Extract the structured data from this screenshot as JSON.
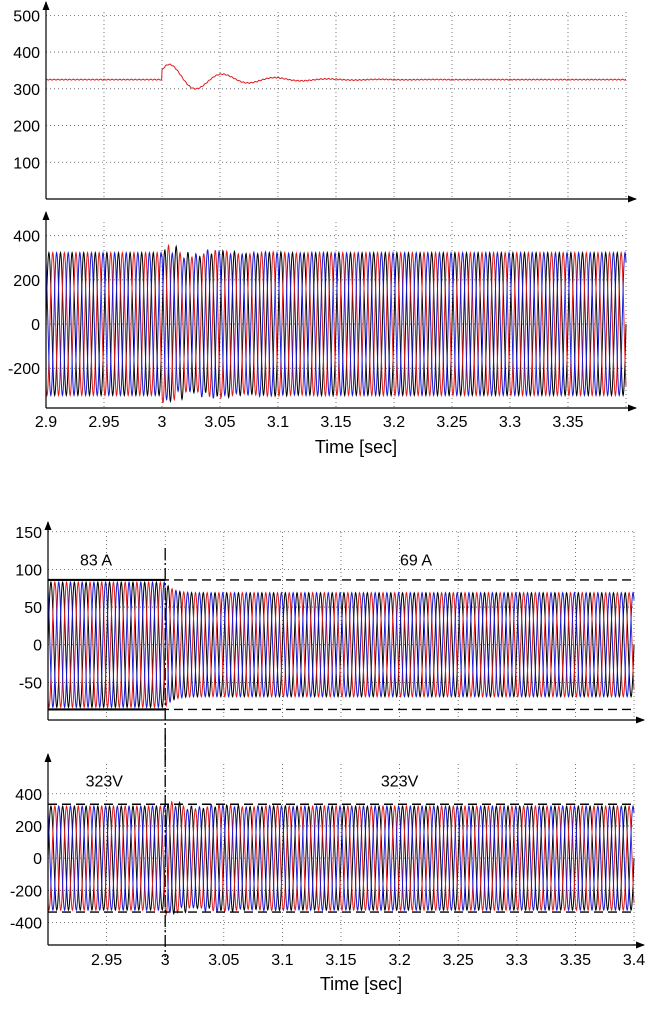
{
  "colors": {
    "phase_a": "#000000",
    "phase_b": "#e0191b",
    "phase_c": "#1919d6",
    "dc": "#e0191b"
  },
  "chart_data": [
    {
      "id": "p1",
      "type": "line",
      "xlim": [
        2.9,
        3.4
      ],
      "ylim": [
        0,
        520
      ],
      "yticks": [
        "100",
        "200",
        "300",
        "400",
        "500"
      ],
      "ytick_values": [
        100,
        200,
        300,
        400,
        500
      ],
      "xticks": [],
      "xtick_values": [],
      "xlabel": "",
      "ylabel": "",
      "grid": true,
      "series": [
        {
          "key": "dc",
          "kind": "dc",
          "base": 325,
          "events": [
            {
              "t": 3.0,
              "overshoot": 48,
              "tau": 0.045,
              "freq": 22
            }
          ]
        }
      ]
    },
    {
      "id": "p2",
      "type": "line",
      "xlim": [
        2.9,
        3.4
      ],
      "ylim": [
        -380,
        480
      ],
      "yticks": [
        "400",
        "200",
        "0",
        "-200"
      ],
      "ytick_values": [
        400,
        200,
        0,
        -200
      ],
      "xticks": [
        "2.9",
        "2.95",
        "3",
        "3.05",
        "3.1",
        "3.15",
        "3.2",
        "3.25",
        "3.3",
        "3.35"
      ],
      "xtick_values": [
        2.9,
        2.95,
        3.0,
        3.05,
        3.1,
        3.15,
        3.2,
        3.25,
        3.3,
        3.35
      ],
      "xlabel": "Time [sec]",
      "ylabel": "",
      "grid": true,
      "series": [
        {
          "key": "phase_a",
          "kind": "ac",
          "amplitude": 323,
          "freq": 100,
          "phase_deg": 0
        },
        {
          "key": "phase_b",
          "kind": "ac",
          "amplitude": 323,
          "freq": 100,
          "phase_deg": -120
        },
        {
          "key": "phase_c",
          "kind": "ac",
          "amplitude": 323,
          "freq": 100,
          "phase_deg": 120
        }
      ],
      "disturbance": {
        "t": 3.0,
        "gain": 0.12,
        "tau": 0.04
      }
    },
    {
      "id": "p3",
      "type": "line",
      "xlim": [
        2.9,
        3.4
      ],
      "ylim": [
        -100,
        155
      ],
      "yticks": [
        "150",
        "100",
        "50",
        "0",
        "-50"
      ],
      "ytick_values": [
        150,
        100,
        50,
        0,
        -50
      ],
      "xticks": [],
      "xtick_values": [],
      "xlabel": "",
      "ylabel": "",
      "grid": true,
      "series": [
        {
          "key": "phase_a",
          "kind": "ac",
          "amplitude": 83,
          "amplitude_after": 69,
          "switch_t": 3.0,
          "freq": 100,
          "phase_deg": 0
        },
        {
          "key": "phase_b",
          "kind": "ac",
          "amplitude": 83,
          "amplitude_after": 69,
          "switch_t": 3.0,
          "freq": 100,
          "phase_deg": -120
        },
        {
          "key": "phase_c",
          "kind": "ac",
          "amplitude": 83,
          "amplitude_after": 69,
          "switch_t": 3.0,
          "freq": 100,
          "phase_deg": 120
        }
      ],
      "reference_lines": [
        {
          "y": 86,
          "x_from": 2.9,
          "x_to": 3.4,
          "style": "dashed"
        },
        {
          "y": -86,
          "x_from": 2.9,
          "x_to": 3.4,
          "style": "dashed"
        },
        {
          "y": 86,
          "x_from": 2.9,
          "x_to": 3.0,
          "style": "solid-bold"
        },
        {
          "y": -86,
          "x_from": 2.9,
          "x_to": 3.0,
          "style": "solid-bold"
        }
      ],
      "annotations": [
        {
          "text": "83 A",
          "x": 2.941,
          "y": 105
        },
        {
          "text": "69 A",
          "x": 3.214,
          "y": 105
        }
      ],
      "vline": 3.0
    },
    {
      "id": "p4",
      "type": "line",
      "xlim": [
        2.9,
        3.4
      ],
      "ylim": [
        -540,
        610
      ],
      "yticks": [
        "400",
        "200",
        "0",
        "-200",
        "-400"
      ],
      "ytick_values": [
        400,
        200,
        0,
        -200,
        -400
      ],
      "xticks": [
        "2.95",
        "3",
        "3.05",
        "3.1",
        "3.15",
        "3.2",
        "3.25",
        "3.3",
        "3.35",
        "3.4"
      ],
      "xtick_values": [
        2.95,
        3.0,
        3.05,
        3.1,
        3.15,
        3.2,
        3.25,
        3.3,
        3.35,
        3.4
      ],
      "xlabel": "Time [sec]",
      "ylabel": "",
      "grid": true,
      "series": [
        {
          "key": "phase_a",
          "kind": "ac",
          "amplitude": 323,
          "freq": 100,
          "phase_deg": 0
        },
        {
          "key": "phase_b",
          "kind": "ac",
          "amplitude": 323,
          "freq": 100,
          "phase_deg": -120
        },
        {
          "key": "phase_c",
          "kind": "ac",
          "amplitude": 323,
          "freq": 100,
          "phase_deg": 120
        }
      ],
      "disturbance": {
        "t": 3.0,
        "gain": 0.1,
        "tau": 0.04
      },
      "reference_lines": [
        {
          "y": 335,
          "x_from": 2.9,
          "x_to": 3.4,
          "style": "dashed"
        },
        {
          "y": -335,
          "x_from": 2.9,
          "x_to": 3.4,
          "style": "dashed"
        }
      ],
      "annotations": [
        {
          "text": "323V",
          "x": 2.948,
          "y": 445
        },
        {
          "text": "323V",
          "x": 3.2,
          "y": 445
        }
      ],
      "vline": 3.0
    }
  ]
}
